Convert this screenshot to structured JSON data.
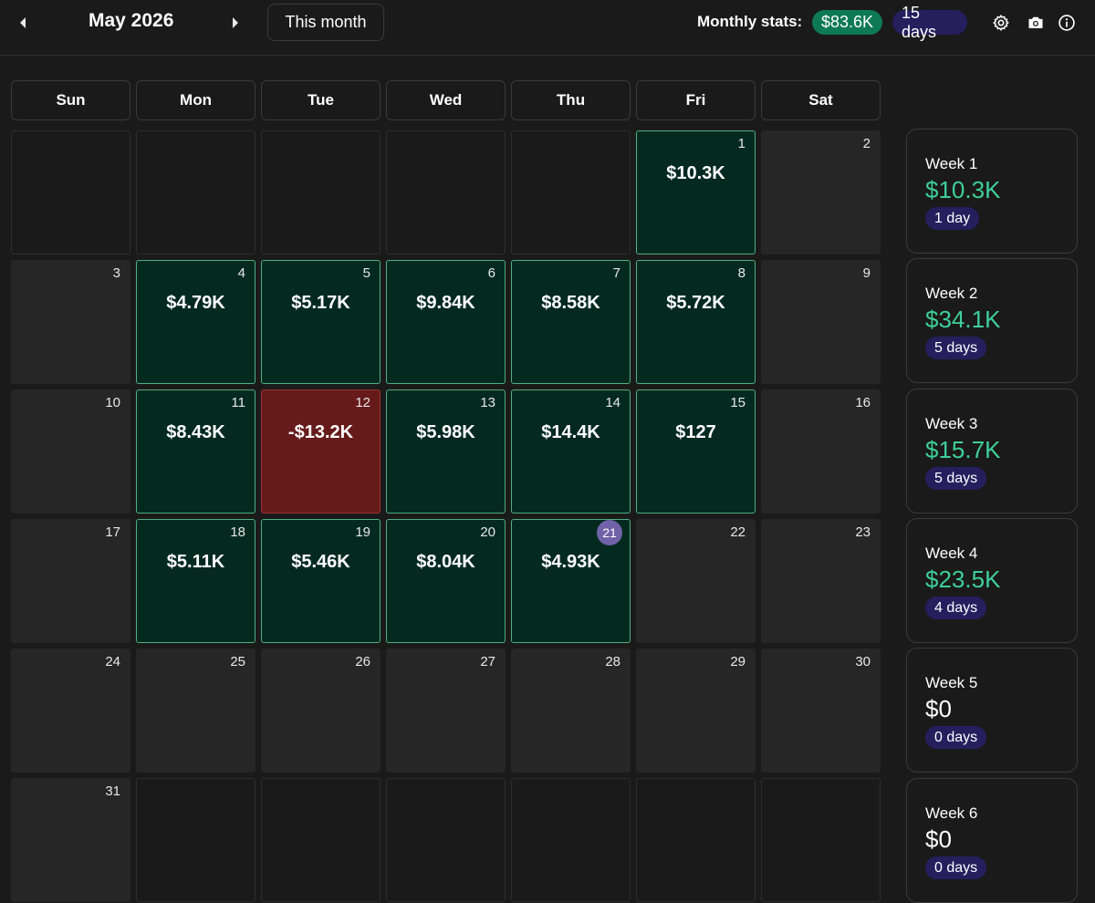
{
  "header": {
    "month_title": "May 2026",
    "this_month_label": "This month",
    "stats_label": "Monthly stats:",
    "stats_pnl": "$83.6K",
    "stats_days": "15 days",
    "icons": [
      "chevron-left-icon",
      "chevron-right-icon",
      "gear-icon",
      "camera-icon",
      "info-icon"
    ]
  },
  "weekdays": [
    "Sun",
    "Mon",
    "Tue",
    "Wed",
    "Thu",
    "Fri",
    "Sat"
  ],
  "today": "21",
  "colors": {
    "win_bg": "#042a20",
    "win_border": "#4fae82",
    "loss_bg": "#661a1a",
    "today_badge": "#7062a8",
    "pnl_badge": "#0e7a55",
    "days_badge": "#251f5e",
    "week_pnl_positive": "#3ecf9a"
  },
  "calendar": [
    [
      {
        "day": "",
        "pnl": "",
        "status": "empty"
      },
      {
        "day": "",
        "pnl": "",
        "status": "empty"
      },
      {
        "day": "",
        "pnl": "",
        "status": "empty"
      },
      {
        "day": "",
        "pnl": "",
        "status": "empty"
      },
      {
        "day": "",
        "pnl": "",
        "status": "empty"
      },
      {
        "day": "1",
        "pnl": "$10.3K",
        "status": "win"
      },
      {
        "day": "2",
        "pnl": "",
        "status": "none"
      }
    ],
    [
      {
        "day": "3",
        "pnl": "",
        "status": "none"
      },
      {
        "day": "4",
        "pnl": "$4.79K",
        "status": "win"
      },
      {
        "day": "5",
        "pnl": "$5.17K",
        "status": "win"
      },
      {
        "day": "6",
        "pnl": "$9.84K",
        "status": "win"
      },
      {
        "day": "7",
        "pnl": "$8.58K",
        "status": "win"
      },
      {
        "day": "8",
        "pnl": "$5.72K",
        "status": "win"
      },
      {
        "day": "9",
        "pnl": "",
        "status": "none"
      }
    ],
    [
      {
        "day": "10",
        "pnl": "",
        "status": "none"
      },
      {
        "day": "11",
        "pnl": "$8.43K",
        "status": "win"
      },
      {
        "day": "12",
        "pnl": "-$13.2K",
        "status": "loss"
      },
      {
        "day": "13",
        "pnl": "$5.98K",
        "status": "win"
      },
      {
        "day": "14",
        "pnl": "$14.4K",
        "status": "win"
      },
      {
        "day": "15",
        "pnl": "$127",
        "status": "win"
      },
      {
        "day": "16",
        "pnl": "",
        "status": "none"
      }
    ],
    [
      {
        "day": "17",
        "pnl": "",
        "status": "none"
      },
      {
        "day": "18",
        "pnl": "$5.11K",
        "status": "win"
      },
      {
        "day": "19",
        "pnl": "$5.46K",
        "status": "win"
      },
      {
        "day": "20",
        "pnl": "$8.04K",
        "status": "win"
      },
      {
        "day": "21",
        "pnl": "$4.93K",
        "status": "win"
      },
      {
        "day": "22",
        "pnl": "",
        "status": "none"
      },
      {
        "day": "23",
        "pnl": "",
        "status": "none"
      }
    ],
    [
      {
        "day": "24",
        "pnl": "",
        "status": "none"
      },
      {
        "day": "25",
        "pnl": "",
        "status": "none"
      },
      {
        "day": "26",
        "pnl": "",
        "status": "none"
      },
      {
        "day": "27",
        "pnl": "",
        "status": "none"
      },
      {
        "day": "28",
        "pnl": "",
        "status": "none"
      },
      {
        "day": "29",
        "pnl": "",
        "status": "none"
      },
      {
        "day": "30",
        "pnl": "",
        "status": "none"
      }
    ],
    [
      {
        "day": "31",
        "pnl": "",
        "status": "none"
      },
      {
        "day": "",
        "pnl": "",
        "status": "empty"
      },
      {
        "day": "",
        "pnl": "",
        "status": "empty"
      },
      {
        "day": "",
        "pnl": "",
        "status": "empty"
      },
      {
        "day": "",
        "pnl": "",
        "status": "empty"
      },
      {
        "day": "",
        "pnl": "",
        "status": "empty"
      },
      {
        "day": "",
        "pnl": "",
        "status": "empty"
      }
    ]
  ],
  "weeks": [
    {
      "label": "Week 1",
      "pnl": "$10.3K",
      "days": "1 day",
      "zero": false
    },
    {
      "label": "Week 2",
      "pnl": "$34.1K",
      "days": "5 days",
      "zero": false
    },
    {
      "label": "Week 3",
      "pnl": "$15.7K",
      "days": "5 days",
      "zero": false
    },
    {
      "label": "Week 4",
      "pnl": "$23.5K",
      "days": "4 days",
      "zero": false
    },
    {
      "label": "Week 5",
      "pnl": "$0",
      "days": "0 days",
      "zero": true
    },
    {
      "label": "Week 6",
      "pnl": "$0",
      "days": "0 days",
      "zero": true
    }
  ]
}
